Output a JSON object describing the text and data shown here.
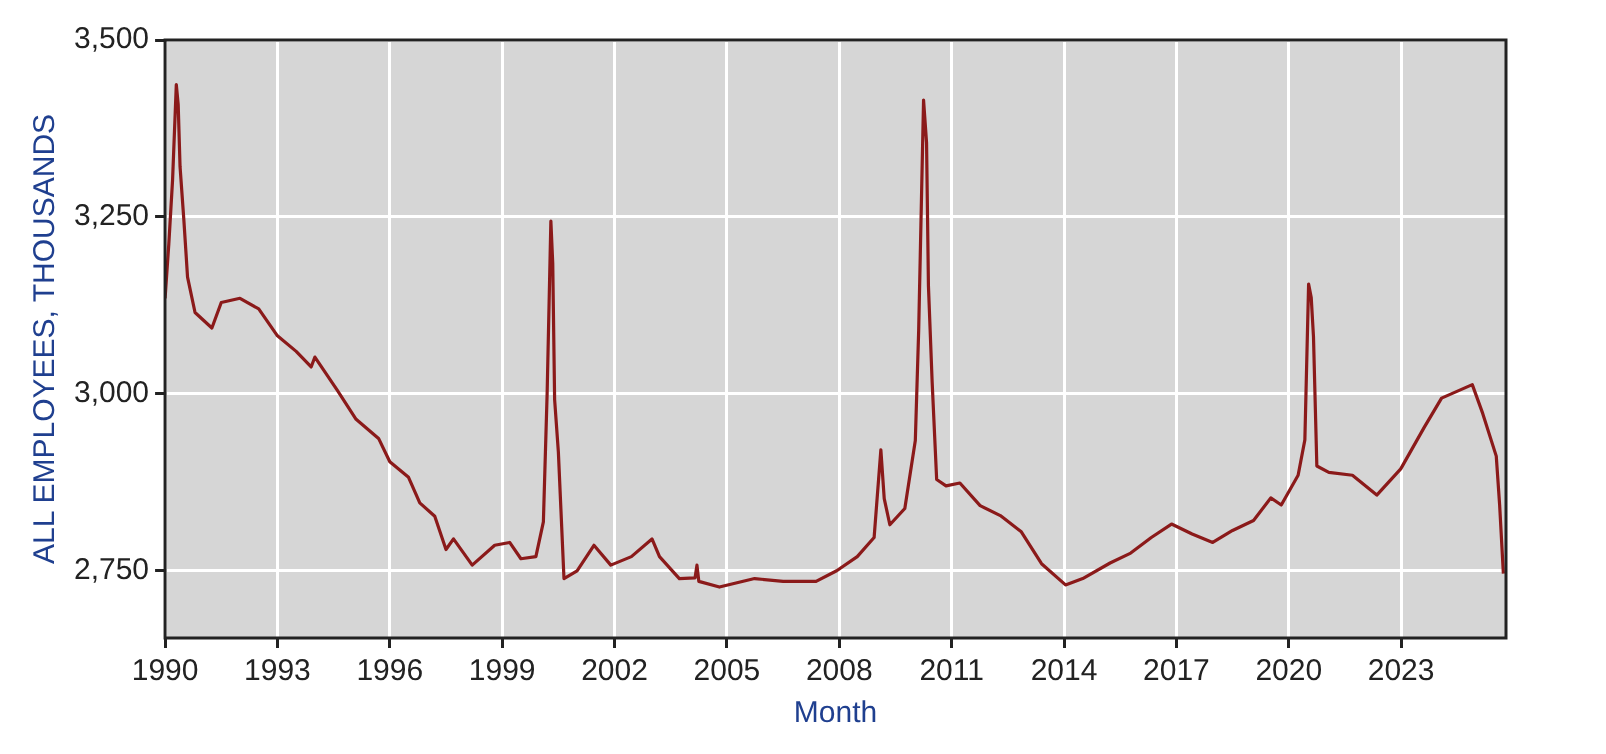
{
  "chart_data": {
    "type": "line",
    "xlabel": "Month",
    "ylabel": "ALL EMPLOYEES, THOUSANDS",
    "xlim": [
      1990,
      2025.8
    ],
    "ylim": [
      2655,
      3500
    ],
    "xticks": [
      1990,
      1993,
      1996,
      1999,
      2002,
      2005,
      2008,
      2011,
      2014,
      2017,
      2020,
      2023
    ],
    "yticks": [
      {
        "value": 2750,
        "label": "2,750"
      },
      {
        "value": 3000,
        "label": "3,000"
      },
      {
        "value": 3250,
        "label": "3,250"
      },
      {
        "value": 3500,
        "label": "3,500"
      }
    ],
    "grid": true,
    "legend": false,
    "marker": "none",
    "line_style": "solid",
    "series": [
      {
        "color": "#8b1a1a",
        "x": [
          1990.0,
          1990.1,
          1990.2,
          1990.3,
          1990.35,
          1990.4,
          1990.5,
          1990.6,
          1990.8,
          1991.25,
          1991.5,
          1992.0,
          1992.5,
          1993.0,
          1993.5,
          1993.9,
          1994.0,
          1994.6,
          1995.1,
          1995.7,
          1996.0,
          1996.5,
          1996.8,
          1997.2,
          1997.5,
          1997.7,
          1998.2,
          1998.8,
          1999.2,
          1999.5,
          1999.9,
          2000.1,
          2000.2,
          2000.3,
          2000.35,
          2000.4,
          2000.5,
          2000.65,
          2001.0,
          2001.45,
          2001.9,
          2002.45,
          2003.0,
          2003.2,
          2003.73,
          2004.15,
          2004.2,
          2004.25,
          2004.8,
          2005.74,
          2006.5,
          2007.38,
          2007.93,
          2008.48,
          2008.93,
          2009.11,
          2009.2,
          2009.35,
          2009.75,
          2010.03,
          2010.12,
          2010.25,
          2010.33,
          2010.38,
          2010.48,
          2010.6,
          2010.85,
          2011.22,
          2011.76,
          2012.3,
          2012.86,
          2013.4,
          2014.04,
          2014.5,
          2015.23,
          2015.78,
          2016.33,
          2016.87,
          2017.42,
          2017.97,
          2018.5,
          2019.06,
          2019.52,
          2019.8,
          2020.25,
          2020.43,
          2020.53,
          2020.6,
          2020.66,
          2020.75,
          2021.07,
          2021.7,
          2022.35,
          2022.99,
          2023.62,
          2024.08,
          2024.9,
          2025.18,
          2025.54,
          2025.63,
          2025.73
        ],
        "values": [
          3135,
          3212,
          3302,
          3437,
          3409,
          3321,
          3247,
          3165,
          3115,
          3093,
          3129,
          3135,
          3120,
          3082,
          3060,
          3038,
          3052,
          3005,
          2964,
          2937,
          2904,
          2882,
          2846,
          2827,
          2780,
          2795,
          2758,
          2786,
          2790,
          2767,
          2770,
          2819,
          3000,
          3244,
          3184,
          2992,
          2918,
          2739,
          2750,
          2786,
          2758,
          2770,
          2795,
          2770,
          2739,
          2740,
          2758,
          2735,
          2727,
          2739,
          2735,
          2735,
          2750,
          2770,
          2797,
          2921,
          2852,
          2815,
          2838,
          2934,
          3090,
          3415,
          3355,
          3153,
          3016,
          2879,
          2870,
          2874,
          2842,
          2828,
          2805,
          2760,
          2730,
          2739,
          2761,
          2775,
          2797,
          2816,
          2802,
          2790,
          2807,
          2821,
          2853,
          2843,
          2885,
          2935,
          3155,
          3136,
          3081,
          2898,
          2889,
          2885,
          2857,
          2894,
          2953,
          2994,
          3013,
          2972,
          2912,
          2843,
          2746
        ]
      }
    ]
  }
}
